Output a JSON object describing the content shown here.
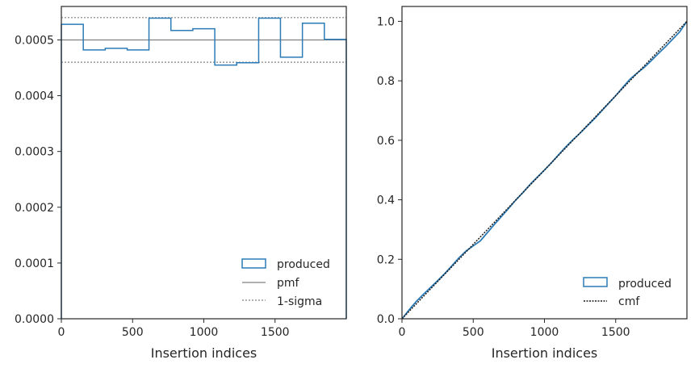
{
  "colors": {
    "produced": "#2c7bb6",
    "pmf": "#808080",
    "sigma": "#808080",
    "cmf": "#1a1a1a",
    "axis": "#262626"
  },
  "chart_data": [
    {
      "type": "histogram-step",
      "xlabel": "Insertion indices",
      "ylabel": "",
      "xlim": [
        0,
        2000
      ],
      "ylim": [
        0,
        0.00056
      ],
      "xticks": [
        0,
        500,
        1000,
        1500
      ],
      "xtick_labels": [
        "0",
        "500",
        "1000",
        "1500"
      ],
      "yticks": [
        0,
        0.0001,
        0.0002,
        0.0003,
        0.0004,
        0.0005
      ],
      "ytick_labels": [
        "0.0000",
        "0.0001",
        "0.0002",
        "0.0003",
        "0.0004",
        "0.0005"
      ],
      "bin_edges": [
        0,
        154,
        308,
        462,
        615,
        769,
        923,
        1077,
        1231,
        1385,
        1538,
        1692,
        1846,
        2000
      ],
      "values": [
        0.000528,
        0.000482,
        0.000485,
        0.000482,
        0.000539,
        0.000517,
        0.00052,
        0.000455,
        0.000459,
        0.000539,
        0.000469,
        0.00053,
        0.000501
      ],
      "pmf": 0.0005,
      "sigma_lower": 0.00046,
      "sigma_upper": 0.00054,
      "legend": [
        "produced",
        "pmf",
        "1-sigma"
      ],
      "legend_position": "lower-right"
    },
    {
      "type": "line",
      "xlabel": "Insertion indices",
      "ylabel": "",
      "xlim": [
        0,
        2000
      ],
      "ylim": [
        0,
        1.05
      ],
      "xticks": [
        0,
        500,
        1000,
        1500
      ],
      "xtick_labels": [
        "0",
        "500",
        "1000",
        "1500"
      ],
      "yticks": [
        0,
        0.2,
        0.4,
        0.6,
        0.8,
        1.0
      ],
      "ytick_labels": [
        "0.0",
        "0.2",
        "0.4",
        "0.6",
        "0.8",
        "1.0"
      ],
      "series": [
        {
          "name": "produced",
          "x": [
            0,
            50,
            100,
            150,
            200,
            250,
            300,
            350,
            400,
            450,
            500,
            550,
            600,
            650,
            700,
            750,
            800,
            850,
            900,
            950,
            1000,
            1050,
            1100,
            1150,
            1200,
            1250,
            1300,
            1350,
            1400,
            1450,
            1500,
            1550,
            1600,
            1650,
            1700,
            1750,
            1800,
            1850,
            1900,
            1950,
            2000
          ],
          "y": [
            0,
            0.03,
            0.058,
            0.082,
            0.105,
            0.128,
            0.152,
            0.178,
            0.205,
            0.228,
            0.245,
            0.262,
            0.29,
            0.318,
            0.345,
            0.372,
            0.4,
            0.425,
            0.452,
            0.476,
            0.5,
            0.525,
            0.552,
            0.578,
            0.602,
            0.624,
            0.648,
            0.672,
            0.698,
            0.724,
            0.75,
            0.778,
            0.805,
            0.826,
            0.845,
            0.868,
            0.892,
            0.915,
            0.94,
            0.965,
            1.0
          ]
        },
        {
          "name": "cmf",
          "x": [
            0,
            2000
          ],
          "y": [
            0,
            1
          ]
        }
      ],
      "legend": [
        "produced",
        "cmf"
      ],
      "legend_position": "lower-right"
    }
  ]
}
